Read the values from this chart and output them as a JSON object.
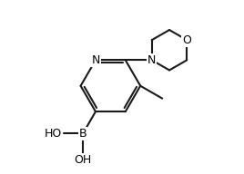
{
  "background": "#ffffff",
  "line_color": "#1a1a1a",
  "line_width": 1.5,
  "font_size": 9,
  "figsize": [
    2.68,
    1.92
  ],
  "dpi": 100,
  "xlim": [
    0,
    10
  ],
  "ylim": [
    0,
    7.5
  ]
}
